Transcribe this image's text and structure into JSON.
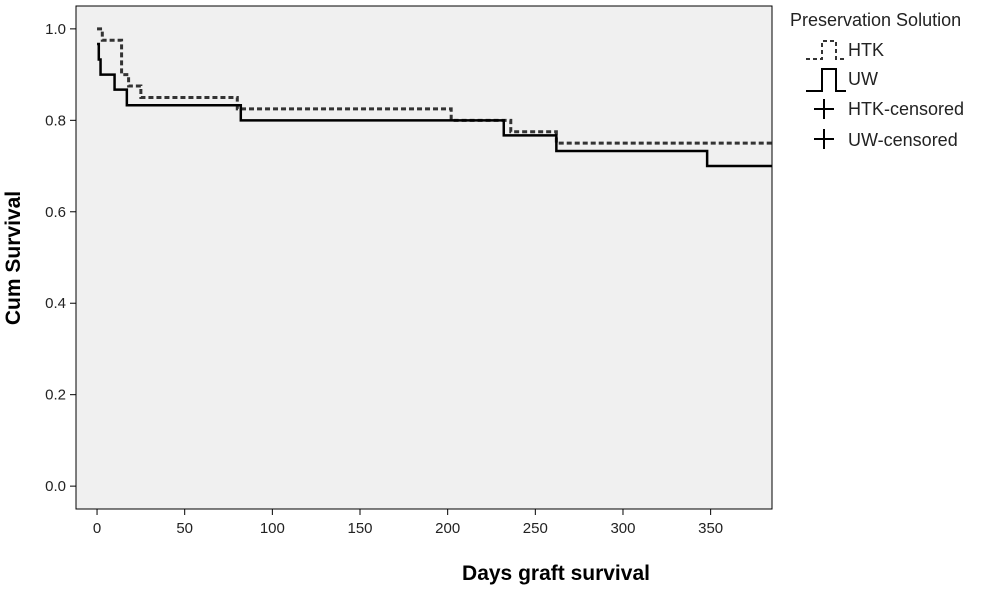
{
  "chart_data": {
    "type": "line",
    "title": "",
    "xlabel": "Days graft survival",
    "ylabel": "Cum Survival",
    "xlim": [
      -12,
      385
    ],
    "ylim": [
      -0.05,
      1.05
    ],
    "xticks": [
      0,
      50,
      100,
      150,
      200,
      250,
      300,
      350
    ],
    "yticks": [
      0.0,
      0.2,
      0.4,
      0.6,
      0.8,
      1.0
    ],
    "ytick_labels": [
      "0.0",
      "0.2",
      "0.4",
      "0.6",
      "0.8",
      "1.0"
    ],
    "grid": false,
    "legend": {
      "title": "Preservation Solution",
      "position": "right",
      "entries": [
        "HTK",
        "UW",
        "HTK-censored",
        "UW-censored"
      ]
    },
    "series": [
      {
        "name": "HTK",
        "style": "dashed",
        "x": [
          0,
          3,
          14,
          18,
          25,
          80,
          82,
          202,
          236,
          262,
          385
        ],
        "y": [
          1.0,
          0.975,
          0.9,
          0.875,
          0.85,
          0.825,
          0.825,
          0.8,
          0.775,
          0.75,
          0.75
        ]
      },
      {
        "name": "UW",
        "style": "solid",
        "x": [
          0,
          1,
          2,
          10,
          17,
          82,
          232,
          262,
          348,
          385
        ],
        "y": [
          0.967,
          0.933,
          0.9,
          0.867,
          0.833,
          0.8,
          0.767,
          0.733,
          0.7,
          0.7
        ]
      }
    ]
  }
}
